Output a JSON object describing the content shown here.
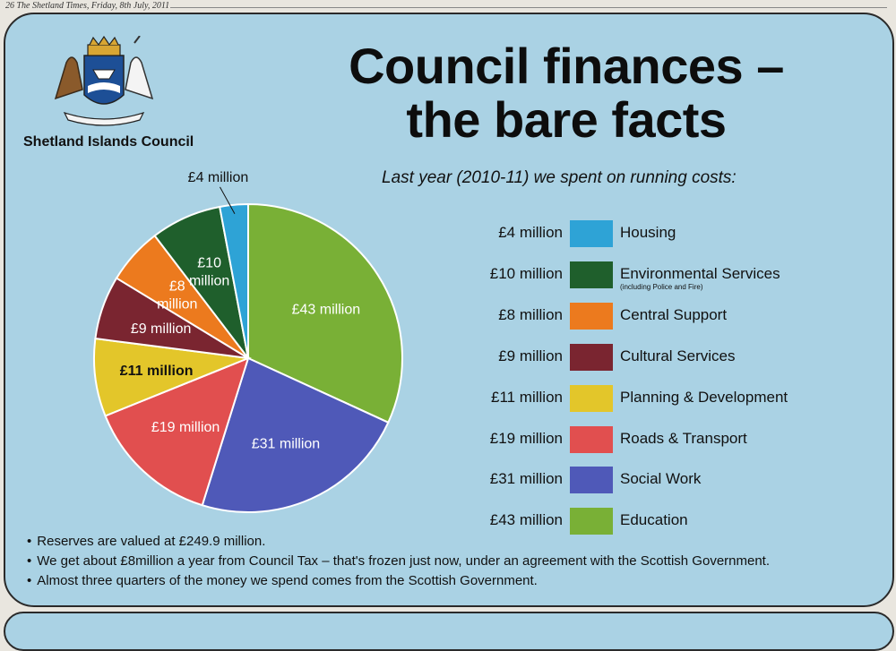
{
  "masthead": "26  The Shetland Times, Friday, 8th July, 2011",
  "organisation": "Shetland Islands Council",
  "title_line1": "Council finances –",
  "title_line2": "the bare facts",
  "subtitle": "Last year (2010-11) we spent on running costs:",
  "colors": {
    "Housing": "#2ea3d6",
    "Environmental Services": "#1f5f2c",
    "Central Support": "#ec7a1e",
    "Cultural Services": "#7a2530",
    "Planning & Development": "#e3c62a",
    "Roads & Transport": "#e14f4f",
    "Social Work": "#4f59b8",
    "Education": "#79b036"
  },
  "legend": [
    {
      "amount": "£4 million",
      "category": "Housing",
      "note": ""
    },
    {
      "amount": "£10 million",
      "category": "Environmental Services",
      "note": "(including Police and Fire)"
    },
    {
      "amount": "£8 million",
      "category": "Central Support",
      "note": ""
    },
    {
      "amount": "£9 million",
      "category": "Cultural Services",
      "note": ""
    },
    {
      "amount": "£11 million",
      "category": "Planning & Development",
      "note": ""
    },
    {
      "amount": "£19 million",
      "category": "Roads & Transport",
      "note": ""
    },
    {
      "amount": "£31 million",
      "category": "Social Work",
      "note": ""
    },
    {
      "amount": "£43 million",
      "category": "Education",
      "note": ""
    }
  ],
  "chart_data": {
    "type": "pie",
    "title": "Council finances – the bare facts",
    "subtitle": "Last year (2010-11) we spent on running costs:",
    "unit": "£ million",
    "categories": [
      "Education",
      "Social Work",
      "Roads & Transport",
      "Planning & Development",
      "Cultural Services",
      "Central Support",
      "Environmental Services",
      "Housing"
    ],
    "values": [
      43,
      31,
      19,
      11,
      9,
      8,
      10,
      4
    ],
    "labels": [
      "£43 million",
      "£31 million",
      "£19 million",
      "£11 million",
      "£9 million",
      "£8 million",
      "£10 million",
      "£4 million"
    ],
    "start": "12 o'clock",
    "direction": "clockwise",
    "legend_placement": "right"
  },
  "bullets": [
    "Reserves are valued at £249.9 million.",
    "We get about £8million a year from Council Tax – that's frozen just now, under an agreement with the Scottish Government.",
    "Almost three quarters of the money we spend comes from the Scottish Government."
  ]
}
